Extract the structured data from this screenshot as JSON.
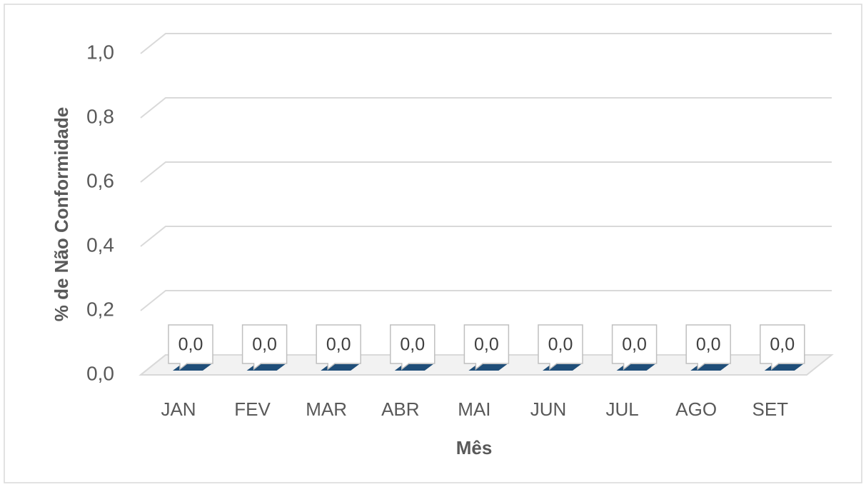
{
  "chart_data": {
    "type": "bar3d",
    "x_label": "Mês",
    "y_label": "% de Não Conformidade",
    "categories": [
      "JAN",
      "FEV",
      "MAR",
      "ABR",
      "MAI",
      "JUN",
      "JUL",
      "AGO",
      "SET"
    ],
    "values": [
      0,
      0,
      0,
      0,
      0,
      0,
      0,
      0,
      0
    ],
    "value_labels": [
      "0,0",
      "0,0",
      "0,0",
      "0,0",
      "0,0",
      "0,0",
      "0,0",
      "0,0",
      "0,0"
    ],
    "color": "#1f4e79",
    "ylim": [
      0,
      1
    ],
    "yticks": [
      {
        "value": 0,
        "label": "0,0"
      },
      {
        "value": 0.2,
        "label": "0,2"
      },
      {
        "value": 0.4,
        "label": "0,4"
      },
      {
        "value": 0.6,
        "label": "0,6"
      },
      {
        "value": 0.8,
        "label": "0,8"
      },
      {
        "value": 1,
        "label": "1,0"
      }
    ],
    "grid": true
  }
}
